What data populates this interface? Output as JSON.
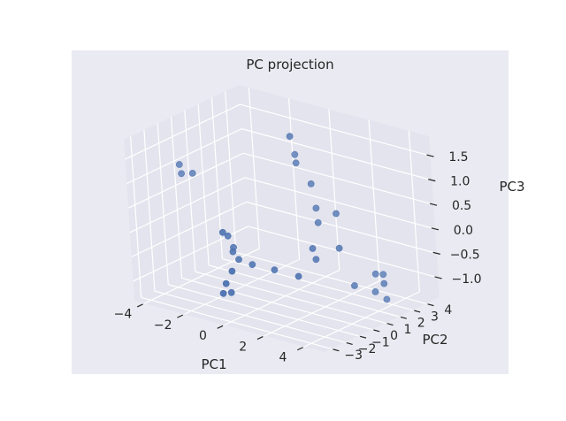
{
  "chart_data": {
    "type": "scatter",
    "title": "PC projection",
    "xlabel": "PC1",
    "ylabel": "PC2",
    "zlabel": "PC3",
    "xticks": [
      "−4",
      "−2",
      "0",
      "2",
      "4"
    ],
    "yticks": [
      "−3",
      "−2",
      "−1",
      "0",
      "1",
      "2",
      "3",
      "4"
    ],
    "zticks": [
      "−1.0",
      "−0.5",
      "0.0",
      "0.5",
      "1.0",
      "1.5"
    ],
    "xlim": [
      -4.5,
      5
    ],
    "ylim": [
      -3.5,
      5
    ],
    "zlim": [
      -1.4,
      1.9
    ],
    "grid": true,
    "colors": {
      "pane": "#e4e4ee",
      "outer": "#eaeaf2",
      "marker": "#4c72b0",
      "grid": "#ffffff"
    },
    "points": [
      {
        "x": -4.1,
        "y": -0.2,
        "z": 1.0
      },
      {
        "x": -4.1,
        "y": -0.1,
        "z": 0.8
      },
      {
        "x": -3.6,
        "y": 0.0,
        "z": 0.85
      },
      {
        "x": -1.2,
        "y": -1.5,
        "z": 0.1
      },
      {
        "x": -1.3,
        "y": -1.0,
        "z": -0.05
      },
      {
        "x": -1.2,
        "y": -0.8,
        "z": -0.3
      },
      {
        "x": -1.1,
        "y": -1.0,
        "z": -0.35
      },
      {
        "x": -0.9,
        "y": -0.9,
        "z": -0.5
      },
      {
        "x": -0.3,
        "y": -0.8,
        "z": -0.55
      },
      {
        "x": 0.6,
        "y": -0.5,
        "z": -0.6
      },
      {
        "x": -0.5,
        "y": -2.0,
        "z": -0.55
      },
      {
        "x": -0.7,
        "y": -2.2,
        "z": -0.8
      },
      {
        "x": -0.6,
        "y": -2.0,
        "z": -1.0
      },
      {
        "x": -0.8,
        "y": -2.3,
        "z": -1.0
      },
      {
        "x": 0.9,
        "y": 0.8,
        "z": 2.0
      },
      {
        "x": 0.6,
        "y": 1.5,
        "z": 1.5
      },
      {
        "x": 0.7,
        "y": 1.4,
        "z": 1.35
      },
      {
        "x": 1.4,
        "y": 1.4,
        "z": 1.0
      },
      {
        "x": 1.5,
        "y": 1.5,
        "z": 0.5
      },
      {
        "x": 1.7,
        "y": 1.3,
        "z": 0.25
      },
      {
        "x": 2.5,
        "y": 1.5,
        "z": 0.5
      },
      {
        "x": 2.9,
        "y": 1.0,
        "z": -0.1
      },
      {
        "x": 1.9,
        "y": 0.5,
        "z": -0.15
      },
      {
        "x": 1.9,
        "y": 0.7,
        "z": -0.4
      },
      {
        "x": 1.8,
        "y": -0.5,
        "z": -0.6
      },
      {
        "x": 3.2,
        "y": 1.5,
        "z": -0.9
      },
      {
        "x": 3.6,
        "y": 2.5,
        "z": -0.75
      },
      {
        "x": 4.0,
        "y": 2.5,
        "z": -0.9
      },
      {
        "x": 3.7,
        "y": 2.9,
        "z": -0.8
      },
      {
        "x": 3.6,
        "y": 2.4,
        "z": -1.1
      },
      {
        "x": 3.8,
        "y": 2.9,
        "z": -1.3
      }
    ]
  }
}
